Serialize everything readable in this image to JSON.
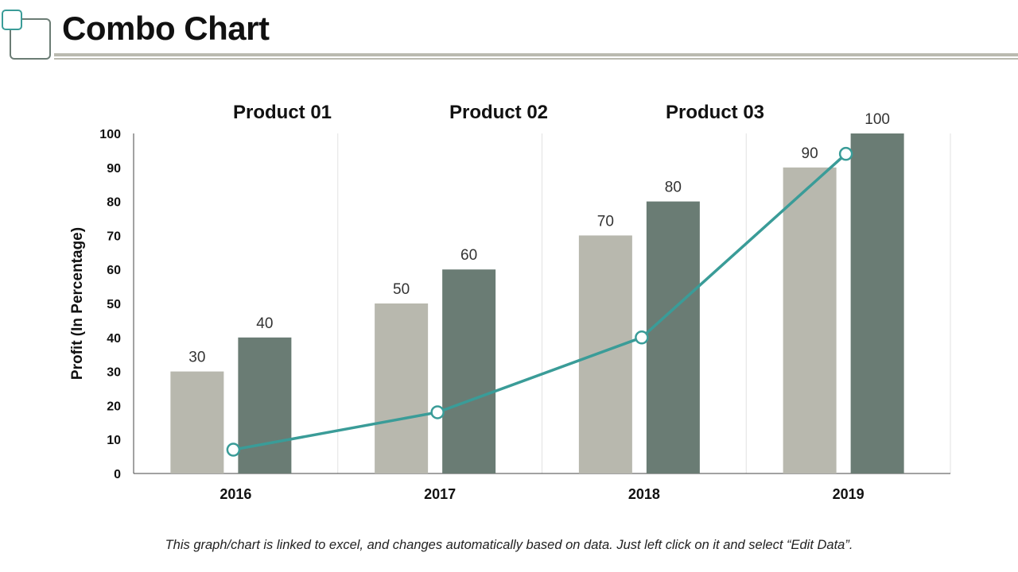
{
  "header": {
    "title": "Combo Chart"
  },
  "footer": {
    "note": "This graph/chart is linked to excel, and changes automatically based on data. Just left click on it and select “Edit Data”."
  },
  "colors": {
    "bar_light": "#b8b8ae",
    "bar_dark": "#6a7c74",
    "line": "#3a9c98",
    "grid": "#e2e2e2",
    "axis": "#444444"
  },
  "chart_data": {
    "type": "bar",
    "categories": [
      "2016",
      "2017",
      "2018",
      "2019"
    ],
    "ylabel": "Profit (In Percentage)",
    "ylim": [
      0,
      100
    ],
    "yticks": [
      0,
      10,
      20,
      30,
      40,
      50,
      60,
      70,
      80,
      90,
      100
    ],
    "grid": true,
    "legend_placement": "top",
    "legend": [
      "Product 01",
      "Product 02",
      "Product 03"
    ],
    "series": [
      {
        "name": "Product 01",
        "type": "bar",
        "values": [
          30,
          50,
          70,
          90
        ],
        "labels": [
          "30",
          "50",
          "70",
          "90"
        ]
      },
      {
        "name": "Product 02",
        "type": "bar",
        "values": [
          40,
          60,
          80,
          100
        ],
        "labels": [
          "40",
          "60",
          "80",
          "100"
        ]
      },
      {
        "name": "Product 03",
        "type": "line",
        "values": [
          7,
          18,
          40,
          94
        ]
      }
    ]
  }
}
